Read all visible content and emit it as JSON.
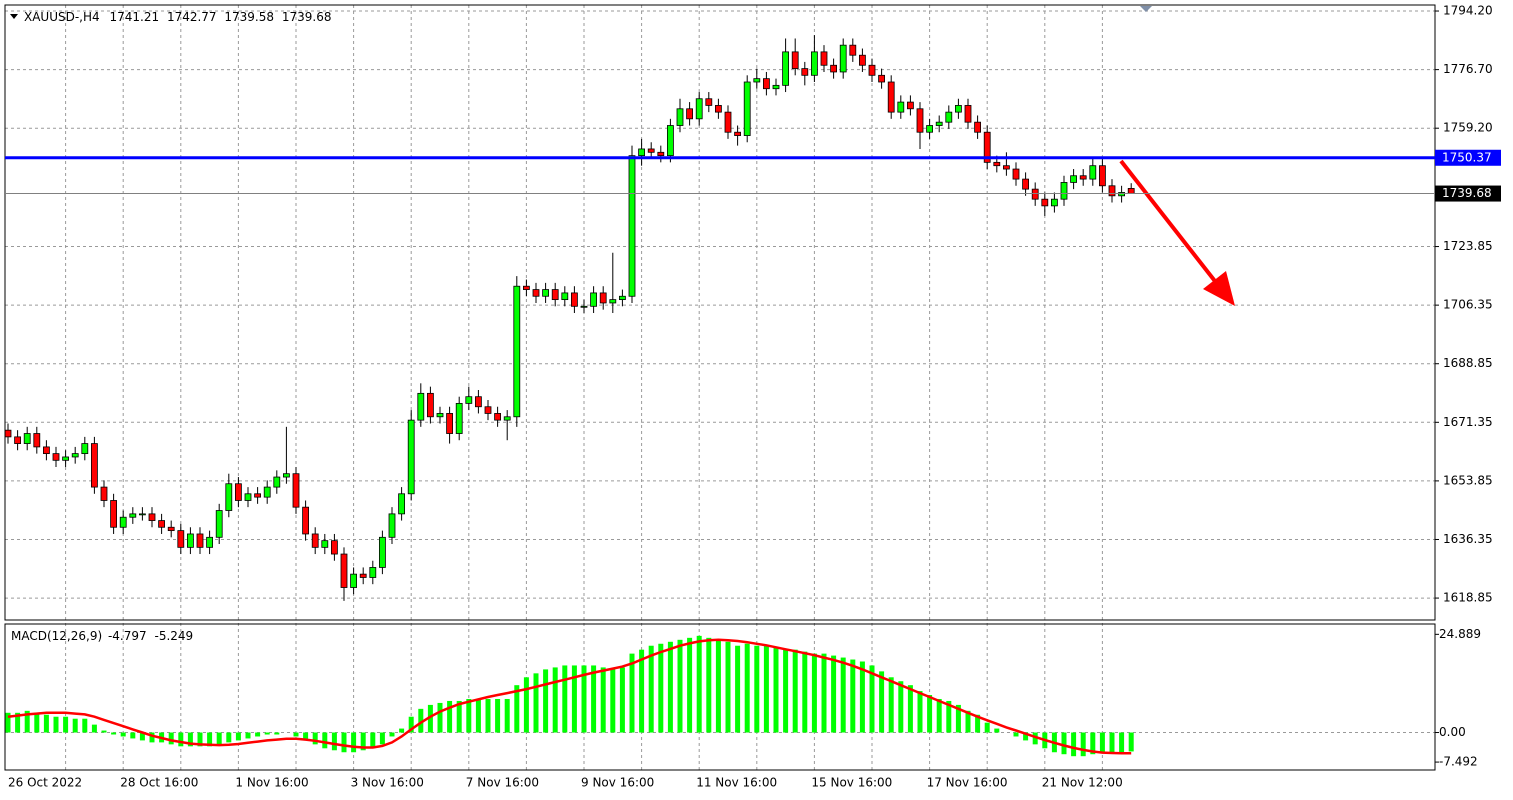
{
  "chart_data": [
    {
      "type": "candlestick",
      "title": "XAUUSD-,H4",
      "categories": [
        "26 Oct 2022",
        null,
        null,
        null,
        null,
        null,
        null,
        null,
        null,
        null,
        null,
        null,
        "28 Oct 16:00",
        null,
        null,
        null,
        null,
        null,
        null,
        null,
        null,
        null,
        null,
        null,
        "1 Nov 16:00",
        null,
        null,
        null,
        null,
        null,
        null,
        null,
        null,
        null,
        null,
        null,
        "3 Nov 16:00",
        null,
        null,
        null,
        null,
        null,
        null,
        null,
        null,
        null,
        null,
        null,
        "7 Nov 16:00",
        null,
        null,
        null,
        null,
        null,
        null,
        null,
        null,
        null,
        null,
        null,
        "9 Nov 16:00",
        null,
        null,
        null,
        null,
        null,
        null,
        null,
        null,
        null,
        null,
        null,
        "11 Nov 16:00",
        null,
        null,
        null,
        null,
        null,
        null,
        null,
        null,
        null,
        null,
        null,
        "15 Nov 16:00",
        null,
        null,
        null,
        null,
        null,
        null,
        null,
        null,
        null,
        null,
        null,
        "17 Nov 16:00",
        null,
        null,
        null,
        null,
        null,
        null,
        null,
        null,
        null,
        null,
        null,
        "21 Nov 12:00",
        null,
        null,
        null,
        null,
        null,
        null,
        null,
        null,
        null
      ],
      "open": [
        1669,
        1667,
        1665,
        1668,
        1664,
        1662,
        1660,
        1661,
        1662,
        1665,
        1652,
        1648,
        1640,
        1643,
        1644,
        1644,
        1642,
        1640,
        1639,
        1634,
        1638,
        1634,
        1637,
        1645,
        1653,
        1648,
        1650,
        1649,
        1652,
        1655,
        1656,
        1646,
        1638,
        1634,
        1636,
        1632,
        1622,
        1626,
        1625,
        1628,
        1637,
        1644,
        1650,
        1672,
        1680,
        1673,
        1674,
        1668,
        1677,
        1679,
        1676,
        1674,
        1672,
        1673,
        1712,
        1711,
        1709,
        1711,
        1708,
        1710,
        1706,
        1706,
        1710,
        1707,
        1708,
        1709,
        1751,
        1753,
        1752,
        1751,
        1760,
        1765,
        1762,
        1768,
        1766,
        1764,
        1758,
        1757,
        1773,
        1774,
        1771,
        1772,
        1782,
        1777,
        1775,
        1782,
        1778,
        1776,
        1784,
        1781,
        1778,
        1775,
        1773,
        1764,
        1767,
        1765,
        1758,
        1760,
        1761,
        1764,
        1766,
        1761,
        1758,
        1749,
        1748,
        1747,
        1744,
        1741,
        1738,
        1736,
        1738,
        1743,
        1745,
        1744,
        1748,
        1742,
        1739,
        1741.21
      ],
      "high": [
        1671,
        1669,
        1670,
        1670,
        1666,
        1664,
        1663,
        1664,
        1667,
        1667,
        1654,
        1650,
        1645,
        1646,
        1646,
        1646,
        1644,
        1642,
        1641,
        1640,
        1640,
        1639,
        1647,
        1656,
        1655,
        1652,
        1652,
        1654,
        1657,
        1670,
        1658,
        1648,
        1640,
        1638,
        1638,
        1634,
        1628,
        1628,
        1630,
        1639,
        1646,
        1652,
        1675,
        1683,
        1682,
        1676,
        1676,
        1679,
        1682,
        1681,
        1678,
        1676,
        1675,
        1715,
        1714,
        1713,
        1713,
        1713,
        1712,
        1712,
        1708,
        1712,
        1712,
        1722,
        1711,
        1754,
        1756,
        1755,
        1754,
        1762,
        1768,
        1767,
        1770,
        1770,
        1768,
        1766,
        1760,
        1775,
        1777,
        1776,
        1774,
        1786,
        1786,
        1779,
        1787,
        1784,
        1780,
        1786,
        1786,
        1783,
        1780,
        1777,
        1775,
        1769,
        1769,
        1767,
        1762,
        1763,
        1766,
        1768,
        1768,
        1763,
        1760,
        1751,
        1752,
        1749,
        1746,
        1743,
        1740,
        1740,
        1745,
        1747,
        1747,
        1750,
        1750,
        1744,
        1742,
        1742.77
      ],
      "low": [
        1665,
        1663,
        1663,
        1662,
        1660,
        1658,
        1658,
        1659,
        1660,
        1650,
        1646,
        1638,
        1638,
        1641,
        1642,
        1640,
        1638,
        1637,
        1632,
        1632,
        1632,
        1632,
        1635,
        1643,
        1646,
        1646,
        1647,
        1647,
        1650,
        1653,
        1644,
        1636,
        1632,
        1632,
        1630,
        1618,
        1620,
        1623,
        1623,
        1626,
        1635,
        1642,
        1648,
        1670,
        1671,
        1671,
        1665,
        1666,
        1675,
        1674,
        1672,
        1670,
        1666,
        1670,
        1709,
        1707,
        1707,
        1706,
        1706,
        1704,
        1704,
        1704,
        1705,
        1704,
        1706,
        1707,
        1748,
        1750,
        1749,
        1749,
        1758,
        1760,
        1760,
        1764,
        1762,
        1756,
        1754,
        1755,
        1771,
        1769,
        1769,
        1770,
        1775,
        1772,
        1773,
        1776,
        1774,
        1774,
        1779,
        1776,
        1773,
        1771,
        1762,
        1762,
        1763,
        1753,
        1756,
        1758,
        1759,
        1762,
        1759,
        1756,
        1747,
        1746,
        1745,
        1742,
        1739,
        1736,
        1733,
        1734,
        1736,
        1741,
        1742,
        1742,
        1740,
        1737,
        1737,
        1739.58
      ],
      "close": [
        1667,
        1665,
        1668,
        1664,
        1662,
        1660,
        1661,
        1662,
        1665,
        1652,
        1648,
        1640,
        1643,
        1644,
        1644,
        1642,
        1640,
        1639,
        1634,
        1638,
        1634,
        1637,
        1645,
        1653,
        1648,
        1650,
        1649,
        1652,
        1655,
        1656,
        1646,
        1638,
        1634,
        1636,
        1632,
        1622,
        1626,
        1625,
        1628,
        1637,
        1644,
        1650,
        1672,
        1680,
        1673,
        1674,
        1668,
        1677,
        1679,
        1676,
        1674,
        1672,
        1673,
        1712,
        1711,
        1709,
        1711,
        1708,
        1710,
        1706,
        1706,
        1710,
        1707,
        1708,
        1709,
        1751,
        1753,
        1752,
        1751,
        1760,
        1765,
        1762,
        1768,
        1766,
        1764,
        1758,
        1757,
        1773,
        1774,
        1771,
        1772,
        1782,
        1777,
        1775,
        1782,
        1778,
        1776,
        1784,
        1781,
        1778,
        1775,
        1773,
        1764,
        1767,
        1765,
        1758,
        1760,
        1761,
        1764,
        1766,
        1761,
        1758,
        1749,
        1748,
        1747,
        1744,
        1741,
        1738,
        1736,
        1738,
        1743,
        1745,
        1744,
        1748,
        1742,
        1739,
        1740,
        1739.68
      ],
      "up_color": "#00ff00",
      "down_color": "#ff0000",
      "hline": {
        "value": 1750.37,
        "color": "#0000ff"
      },
      "ylim": [
        1612.3,
        1796.0
      ],
      "yticks": [
        {
          "value": 1794.2,
          "label": "1794.20"
        },
        {
          "value": 1776.7,
          "label": "1776.70"
        },
        {
          "value": 1759.2,
          "label": "1759.20"
        },
        1723.85,
        1706.35,
        1688.85,
        1671.35,
        1653.85,
        1636.35,
        1618.85
      ],
      "grid": true
    },
    {
      "type": "macd",
      "title": "MACD(12,26,9)",
      "series": [
        {
          "name": "MACD",
          "color": "#00ff00",
          "values": [
            5,
            5,
            5.5,
            5,
            4.5,
            4,
            4,
            3.5,
            3.5,
            2,
            0.5,
            -0.5,
            -1,
            -1.5,
            -2,
            -2.5,
            -2.5,
            -3,
            -3.5,
            -3.5,
            -3.5,
            -3.5,
            -3,
            -2.5,
            -2,
            -1.5,
            -1,
            -0.5,
            -0.5,
            0,
            -1,
            -2,
            -3,
            -4,
            -4.5,
            -5,
            -5,
            -4.5,
            -4,
            -3,
            -1,
            1,
            4,
            6,
            7,
            7.5,
            8,
            8,
            8.5,
            8.5,
            8.5,
            8.5,
            8.5,
            12,
            14,
            15,
            16,
            16.5,
            17,
            17,
            17,
            17,
            16.5,
            16,
            16.5,
            20,
            21,
            22,
            22.5,
            23,
            23.5,
            24,
            24.5,
            24,
            23.5,
            23,
            22,
            22.5,
            22,
            22,
            21.5,
            21,
            21,
            20.5,
            20,
            20,
            19.5,
            19,
            18.5,
            18,
            17,
            15.5,
            14,
            13,
            12,
            10.5,
            9.5,
            8.5,
            8,
            7,
            5.5,
            4.5,
            2.5,
            1,
            0,
            -1,
            -2,
            -3,
            -4,
            -5,
            -5.5,
            -6,
            -6,
            -5.5,
            -5,
            -5,
            -5,
            -4.797
          ]
        },
        {
          "name": "Signal",
          "color": "#ff0000",
          "values": [
            4,
            4.3,
            4.6,
            4.8,
            5,
            5,
            5,
            4.8,
            4.6,
            4,
            3.2,
            2.4,
            1.6,
            0.8,
            0,
            -0.8,
            -1.4,
            -2,
            -2.4,
            -2.8,
            -3,
            -3.1,
            -3.2,
            -3.1,
            -2.9,
            -2.6,
            -2.3,
            -2,
            -1.8,
            -1.6,
            -1.6,
            -1.8,
            -2.1,
            -2.5,
            -2.9,
            -3.3,
            -3.6,
            -3.8,
            -3.8,
            -3.4,
            -2.5,
            -1,
            0.8,
            2.5,
            4,
            5.3,
            6.3,
            7.2,
            7.8,
            8.4,
            9,
            9.5,
            10,
            10.5,
            11,
            11.6,
            12.2,
            12.8,
            13.4,
            14,
            14.6,
            15.2,
            15.7,
            16.2,
            16.7,
            17.5,
            18.5,
            19.5,
            20.4,
            21.2,
            22,
            22.6,
            23.1,
            23.4,
            23.5,
            23.4,
            23.2,
            22.9,
            22.5,
            22.1,
            21.6,
            21.1,
            20.6,
            20.1,
            19.6,
            19,
            18.4,
            17.7,
            16.9,
            16,
            15,
            14,
            13,
            12,
            11,
            10,
            9,
            8,
            7,
            6,
            5,
            4,
            3.1,
            2.2,
            1.3,
            0.5,
            -0.3,
            -1.1,
            -1.9,
            -2.6,
            -3.3,
            -3.9,
            -4.4,
            -4.8,
            -5.1,
            -5.2,
            -5.25,
            -5.249
          ]
        }
      ],
      "ylim": [
        -9.5,
        27
      ],
      "yticks": [
        24.889,
        {
          "value": 0,
          "label": "0.00"
        },
        -7.492
      ]
    }
  ]
}
